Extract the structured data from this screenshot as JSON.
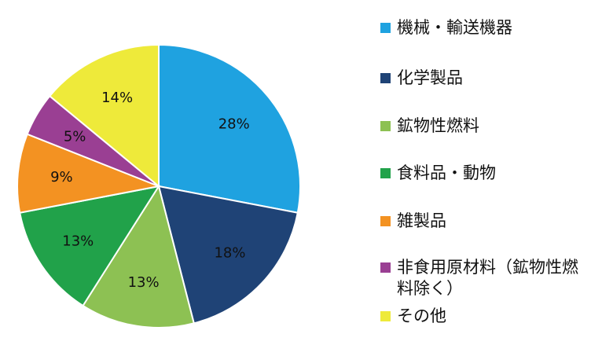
{
  "chart_data": {
    "type": "pie",
    "title": "",
    "slices": [
      {
        "name": "機械・輸送機器",
        "value": 28,
        "label": "28%",
        "color": "#1fa2e0"
      },
      {
        "name": "化学製品",
        "value": 18,
        "label": "18%",
        "color": "#1f4376"
      },
      {
        "name": "鉱物性燃料",
        "value": 13,
        "label": "13%",
        "color": "#8dc153"
      },
      {
        "name": "食料品・動物",
        "value": 13,
        "label": "13%",
        "color": "#21a24a"
      },
      {
        "name": "雑製品",
        "value": 9,
        "label": "9%",
        "color": "#f39222"
      },
      {
        "name": "非食用原材料（鉱物性燃料除く）",
        "value": 5,
        "label": "5%",
        "color": "#9a3f93"
      },
      {
        "name": "その他",
        "value": 14,
        "label": "14%",
        "color": "#eeea3a"
      }
    ],
    "legend_position": "right"
  }
}
